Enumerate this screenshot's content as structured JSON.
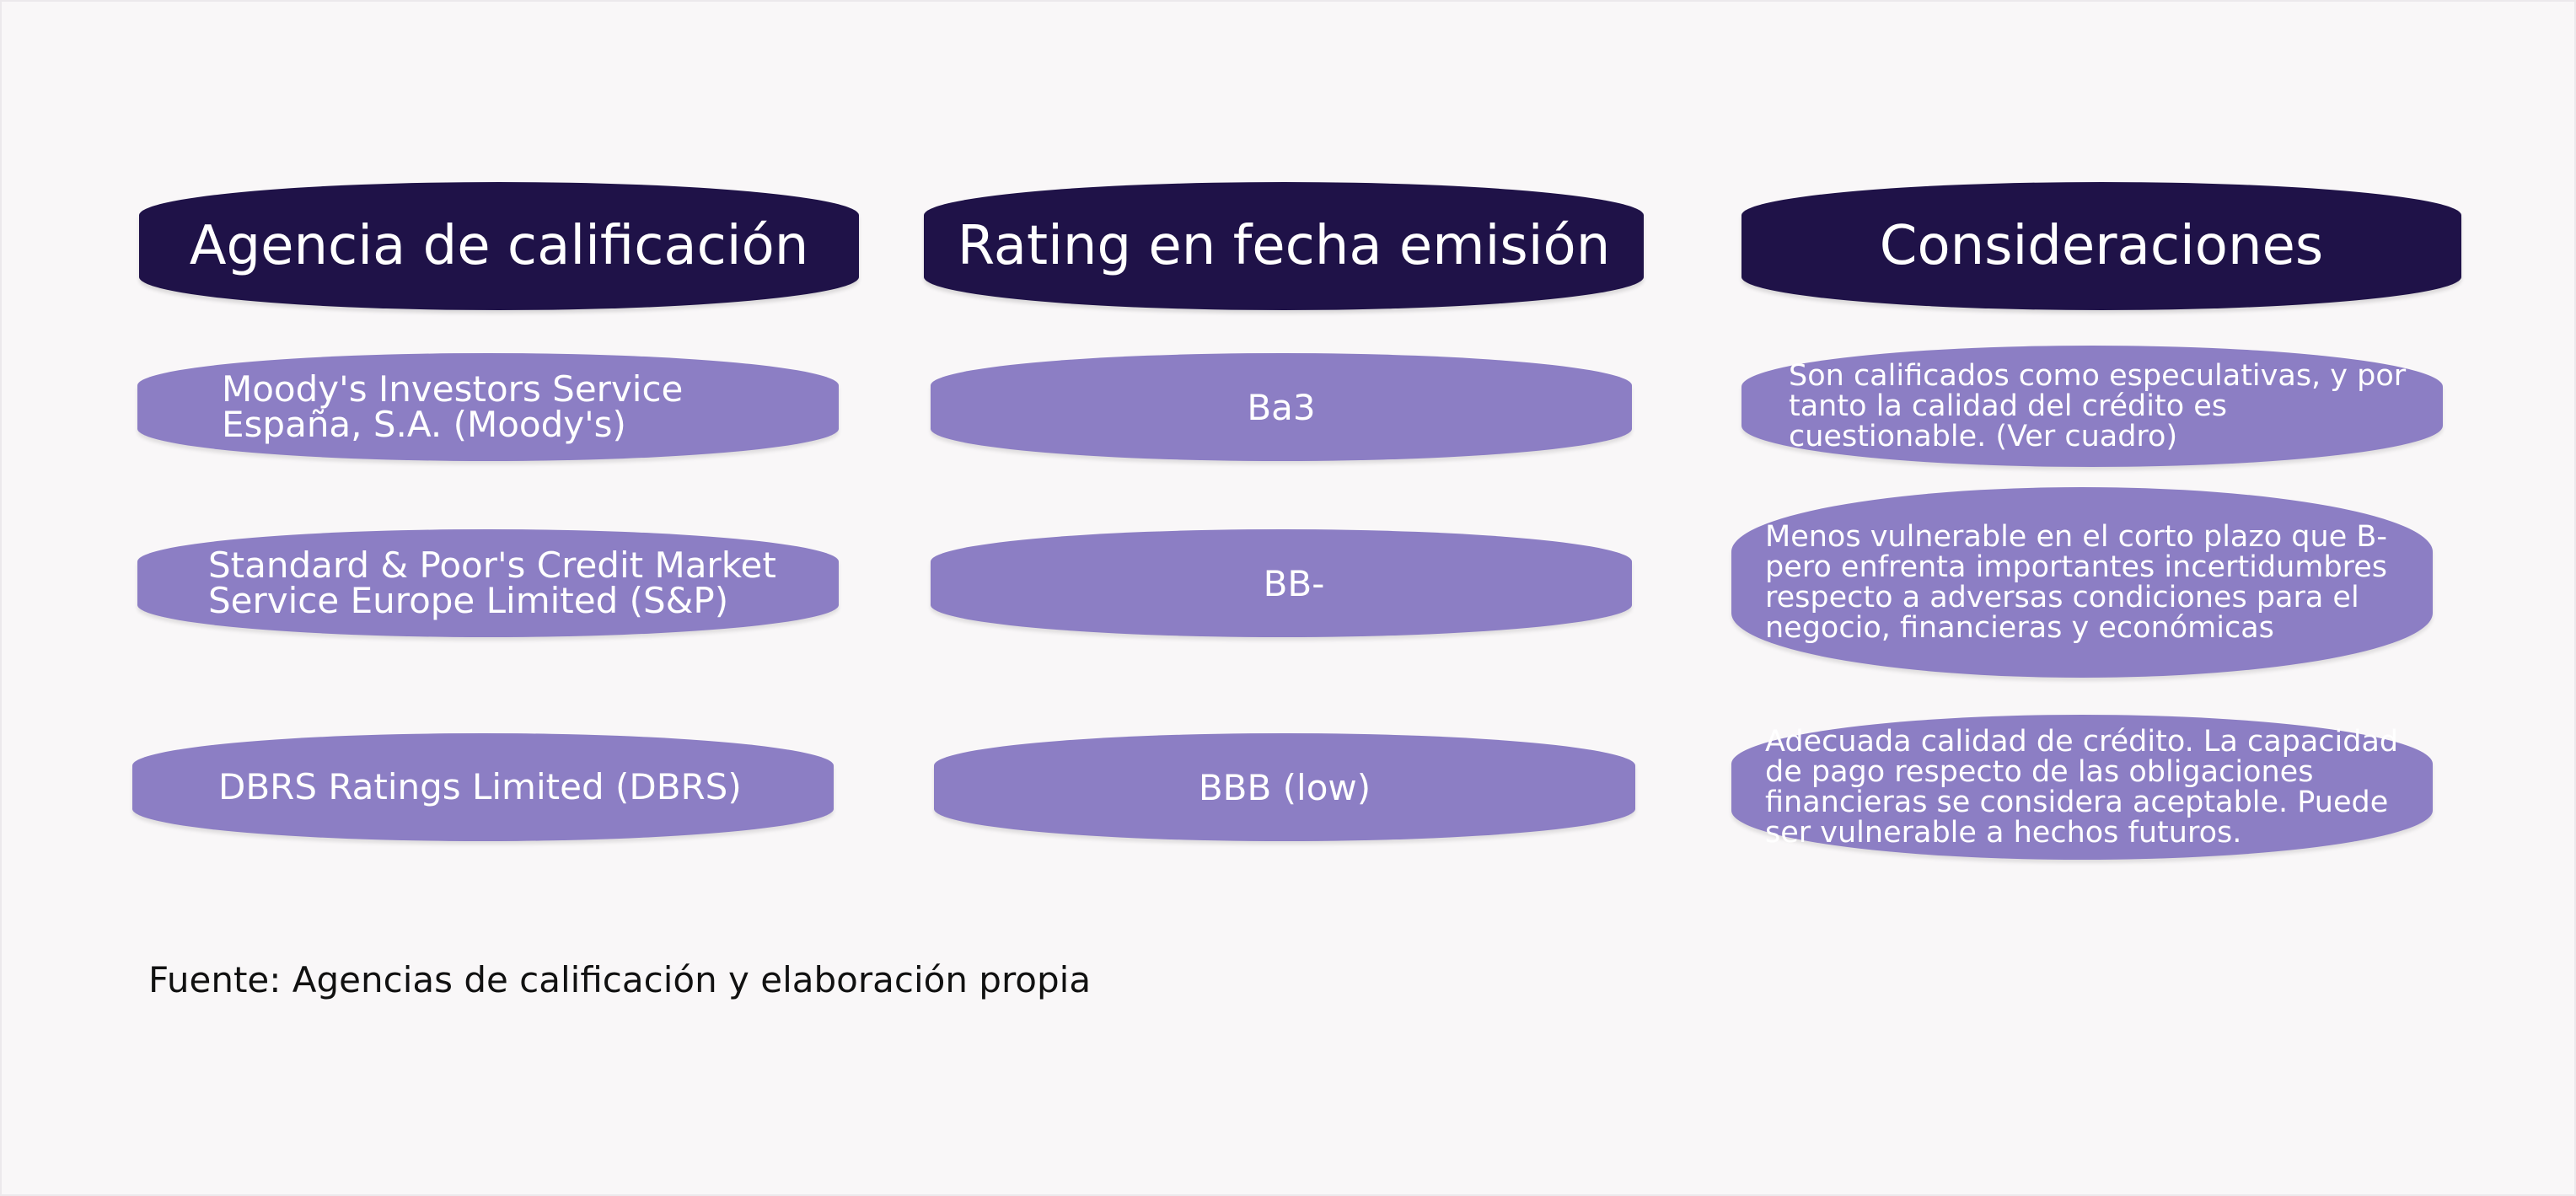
{
  "headers": {
    "agency": "Agencia de calificación",
    "rating": "Rating en fecha emisión",
    "notes": "Consideraciones"
  },
  "rows": [
    {
      "agency_line1": "Moody's Investors Service",
      "agency_line2": "España, S.A. (Moody's)",
      "rating": "Ba3",
      "note_lines": [
        "Son calificados como especulativas, y por",
        "tanto la calidad del crédito es",
        "cuestionable. (Ver cuadro)"
      ]
    },
    {
      "agency_line1": "Standard & Poor's Credit Market",
      "agency_line2": "Service Europe Limited (S&P)",
      "rating": "BB-",
      "note_lines": [
        "Menos vulnerable en el corto plazo que B-",
        "pero enfrenta importantes incertidumbres",
        "respecto a adversas condiciones para el",
        "negocio, financieras y económicas"
      ]
    },
    {
      "agency_line1": "DBRS Ratings Limited (DBRS)",
      "rating": "BBB (low)",
      "note_lines": [
        "Adecuada calidad de crédito. La capacidad",
        "de pago respecto de las obligaciones",
        "financieras se considera aceptable. Puede",
        "ser vulnerable a hechos futuros."
      ]
    }
  ],
  "source": "Fuente: Agencias de calificación y elaboración propia",
  "colors": {
    "header_bg": "#1f1248",
    "cell_bg": "#8c7ec4",
    "text_light": "#ffffff",
    "background": "#f9f7f8"
  }
}
